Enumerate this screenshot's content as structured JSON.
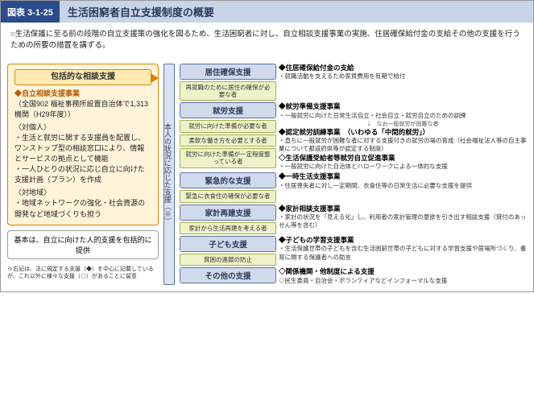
{
  "header": {
    "num": "図表 3-1-25",
    "title": "生活困窮者自立支援制度の概要"
  },
  "intro": "○生活保護に至る前の段階の自立支援策の強化を図るため、生活困窮者に対し、自立相談支援事業の実施、住居確保給付金の支給その他の支援を行うための所要の措置を講ずる。",
  "left": {
    "head": "包括的な相談支援",
    "p1": "◆自立相談支援事業",
    "p1b": "（全国902 福祉事務所設置自治体で1,313機関（H29年度））",
    "p2h": "〈対個人〉",
    "p2a": "・生活と就労に関する支援員を配置し、ワンストップ型の相談窓口により、情報とサービスの拠点として機能",
    "p2b": "・一人ひとりの状況に応じ自立に向けた支援計画（プラン）を作成",
    "p3h": "〈対地域〉",
    "p3a": "・地域ネットワークの強化・社会資源の開発など地域づくりも担う"
  },
  "footer": "基本は、自立に向けた人的支援を包括的に提供",
  "tiny": "※右記は、法に規定する支援（◆）を中心に記載しているが、これ以外に様々な支援（◇）があることに留意",
  "spine": "本人の状況に応じた支援（※）",
  "cats": [
    {
      "title": "居住確保支援",
      "conds": [
        "再就職のために居住の確保が必要な者"
      ],
      "items": [
        {
          "t": "◆住居確保給付金の支給",
          "d": "・就職活動を支えるため家賃費用を有期で給付"
        }
      ]
    },
    {
      "title": "就労支援",
      "conds": [
        "就労に向けた準備が必要な者",
        "柔軟な働き方を必要とする者",
        "就労に向けた準備が一定程度整っている者"
      ],
      "items": [
        {
          "t": "◆就労準備支援事業",
          "d": "・一般就労に向けた日常生活自立・社会自立・就労自立のための訓練"
        },
        {
          "t": "◆認定就労訓練事業　（いわゆる「中間的就労」）",
          "d": "・直ちに一般就労が困難な者に対する支援付きの就労の場の育成（社会福祉法人等の自主事業について都道府県等が認定する制度）"
        },
        {
          "t": "◇生活保護受給者等就労自立促進事業",
          "d": "・一般就労に向けた自治体とハローワークによる一体的な支援"
        }
      ],
      "note": "なお一般就労が困難な者",
      "arrow": true
    },
    {
      "title": "緊急的な支援",
      "conds": [
        "緊急に衣食住の確保が必要な者"
      ],
      "items": [
        {
          "t": "◆一時生活支援事業",
          "d": "・住居喪失者に対し一定期間、衣食住等の日常生活に必要な支援を提供"
        }
      ]
    },
    {
      "title": "家計再建支援",
      "conds": [
        "家計から生活再建を考える者"
      ],
      "items": [
        {
          "t": "◆家計相談支援事業",
          "d": "・家計の状況を「見える化」し、利用者の家計管理の意欲を引き出す相談支援（貸付のあっせん等を含む）"
        }
      ]
    },
    {
      "title": "子ども支援",
      "conds": [
        "貧困の連鎖の防止"
      ],
      "items": [
        {
          "t": "◆子どもの学習支援事業",
          "d": "・生活保護世帯の子どもを含む生活困窮世帯の子どもに対する学習支援や居場所づくり、養育に関する保護者への助言"
        }
      ]
    },
    {
      "title": "その他の支援",
      "conds": [],
      "items": [
        {
          "t": "◇関係機関・他制度による支援",
          "d": "◇民生委員・自治会・ボランティアなどインフォーマルな支援"
        }
      ]
    }
  ]
}
